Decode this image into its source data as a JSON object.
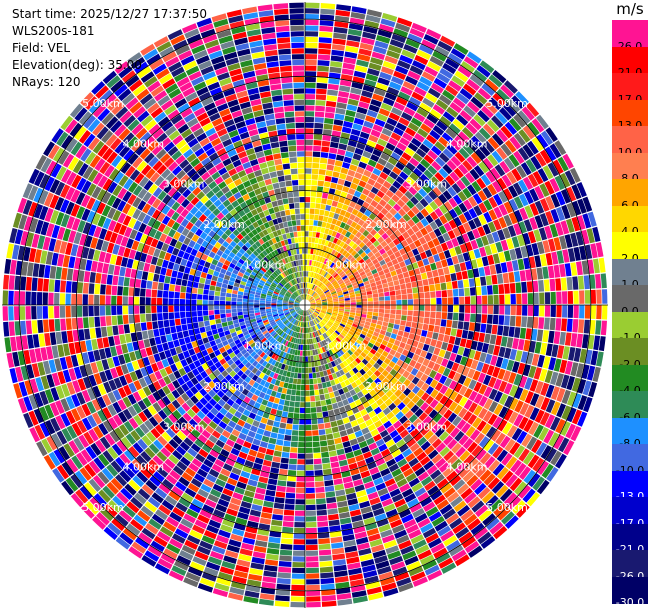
{
  "info": {
    "start_time": "Start time: 2025/12/27 17:37:50",
    "instrument": "WLS200s-181",
    "field": "Field: VEL",
    "elevation": "Elevation(deg): 35.00",
    "nrays": "NRays: 120"
  },
  "chart_data": {
    "type": "heatmap",
    "projection": "polar-ppi",
    "field": "VEL",
    "units": "m/s",
    "n_rays": 120,
    "elevation_deg": 35.0,
    "range_max_km": 5.3,
    "range_rings_km": [
      1.0,
      2.0,
      3.0,
      4.0,
      5.0
    ],
    "ring_labels": [
      "1.00km",
      "2.00km",
      "3.00km",
      "4.00km",
      "5.00km"
    ],
    "colorbar": {
      "label": "m/s",
      "bins": [
        {
          "value": "26.0",
          "color": "#ff1493"
        },
        {
          "value": "21.0",
          "color": "#ff0000"
        },
        {
          "value": "17.0",
          "color": "#ff1a1a"
        },
        {
          "value": "13.0",
          "color": "#ff4500"
        },
        {
          "value": "10.0",
          "color": "#ff6347"
        },
        {
          "value": "8.0",
          "color": "#ff7f50"
        },
        {
          "value": "6.0",
          "color": "#ffa500"
        },
        {
          "value": "4.0",
          "color": "#ffd700"
        },
        {
          "value": "2.0",
          "color": "#ffff00"
        },
        {
          "value": "1.0",
          "color": "#708090"
        },
        {
          "value": "0.0",
          "color": "#696969"
        },
        {
          "value": "-1.0",
          "color": "#9acd32"
        },
        {
          "value": "-2.0",
          "color": "#6b8e23"
        },
        {
          "value": "-4.0",
          "color": "#228b22"
        },
        {
          "value": "-6.0",
          "color": "#2e8b57"
        },
        {
          "value": "-8.0",
          "color": "#1e90ff"
        },
        {
          "value": "-10.0",
          "color": "#4169e1"
        },
        {
          "value": "-13.0",
          "color": "#0000ff"
        },
        {
          "value": "-17.0",
          "color": "#0000cd"
        },
        {
          "value": "-21.0",
          "color": "#00008b"
        },
        {
          "value": "-26.0",
          "color": "#191970"
        },
        {
          "value": "-30.0",
          "color": "#000066"
        }
      ]
    }
  }
}
